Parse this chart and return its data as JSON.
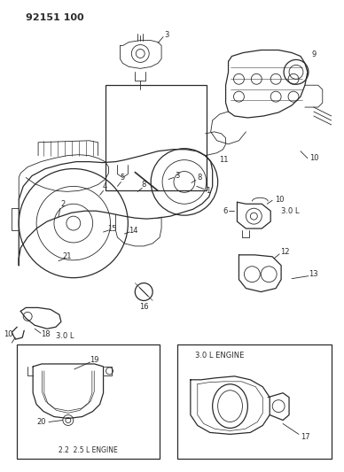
{
  "title": "92151 100",
  "bg_color": "#ffffff",
  "line_color": "#2a2a2a",
  "fig_width": 3.88,
  "fig_height": 5.33,
  "dpi": 100,
  "note_30L_right": "3.0 L",
  "note_30L_left": "3.0 L",
  "box1_label": "2.2  2.5 L ENGINE",
  "box2_label": "3.0 L ENGINE"
}
